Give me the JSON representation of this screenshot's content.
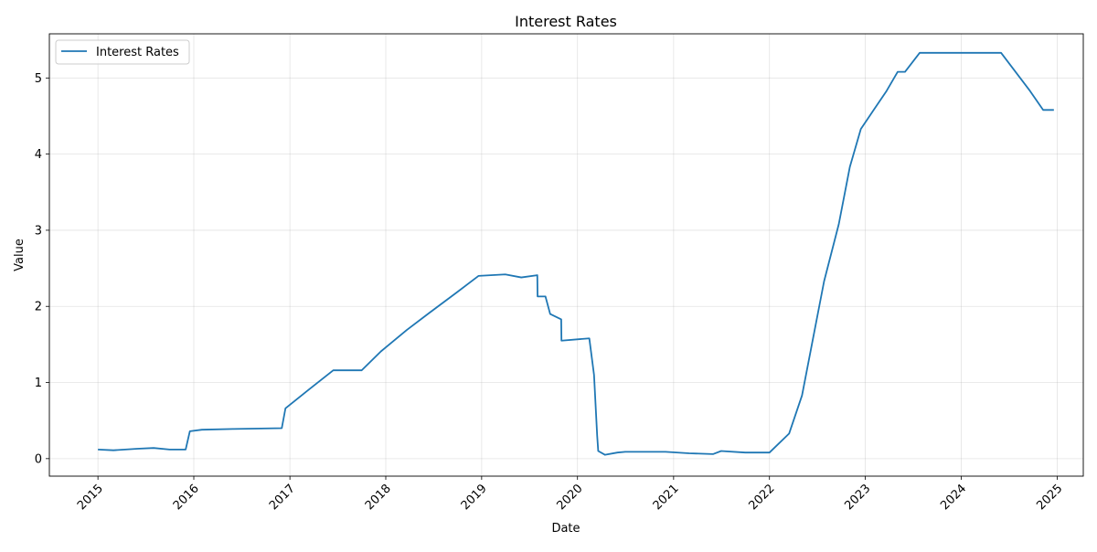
{
  "chart_data": {
    "type": "line",
    "title": "Interest Rates",
    "xlabel": "Date",
    "ylabel": "Value",
    "xlim": [
      "2014-06-30",
      "2025-04-10"
    ],
    "ylim": [
      -0.23,
      5.58
    ],
    "x_ticks": [
      "2015",
      "2016",
      "2017",
      "2018",
      "2019",
      "2020",
      "2021",
      "2022",
      "2023",
      "2024",
      "2025"
    ],
    "y_ticks": [
      0,
      1,
      2,
      3,
      4,
      5
    ],
    "grid": true,
    "legend_position": "top-left",
    "series": [
      {
        "name": "Interest Rates",
        "color": "#1f77b4",
        "x": [
          "2015-01-01",
          "2015-03-01",
          "2015-06-01",
          "2015-08-01",
          "2015-10-01",
          "2015-12-01",
          "2015-12-17",
          "2016-02-01",
          "2016-06-01",
          "2016-12-01",
          "2016-12-15",
          "2017-03-15",
          "2017-06-15",
          "2017-10-01",
          "2017-12-14",
          "2018-03-22",
          "2018-06-14",
          "2018-09-27",
          "2018-12-20",
          "2019-04-01",
          "2019-06-01",
          "2019-08-01",
          "2019-08-02",
          "2019-09-01",
          "2019-09-19",
          "2019-10-31",
          "2019-11-01",
          "2020-02-15",
          "2020-03-04",
          "2020-03-16",
          "2020-03-20",
          "2020-04-15",
          "2020-06-01",
          "2020-07-01",
          "2020-09-01",
          "2020-12-01",
          "2021-03-01",
          "2021-06-01",
          "2021-07-01",
          "2021-10-01",
          "2022-01-01",
          "2022-03-17",
          "2022-05-05",
          "2022-06-16",
          "2022-07-28",
          "2022-09-22",
          "2022-11-03",
          "2022-12-15",
          "2023-02-02",
          "2023-03-23",
          "2023-05-04",
          "2023-06-01",
          "2023-07-27",
          "2024-01-01",
          "2024-06-01",
          "2024-09-19",
          "2024-11-08",
          "2024-12-19"
        ],
        "values": [
          0.12,
          0.11,
          0.13,
          0.14,
          0.12,
          0.12,
          0.36,
          0.38,
          0.39,
          0.4,
          0.66,
          0.91,
          1.16,
          1.16,
          1.41,
          1.69,
          1.91,
          2.18,
          2.4,
          2.42,
          2.38,
          2.41,
          2.13,
          2.13,
          1.9,
          1.83,
          1.55,
          1.58,
          1.1,
          0.3,
          0.1,
          0.05,
          0.08,
          0.09,
          0.09,
          0.09,
          0.07,
          0.06,
          0.1,
          0.08,
          0.08,
          0.33,
          0.83,
          1.58,
          2.33,
          3.08,
          3.83,
          4.33,
          4.58,
          4.83,
          5.08,
          5.08,
          5.33,
          5.33,
          5.33,
          4.83,
          4.58,
          4.58
        ]
      }
    ]
  }
}
